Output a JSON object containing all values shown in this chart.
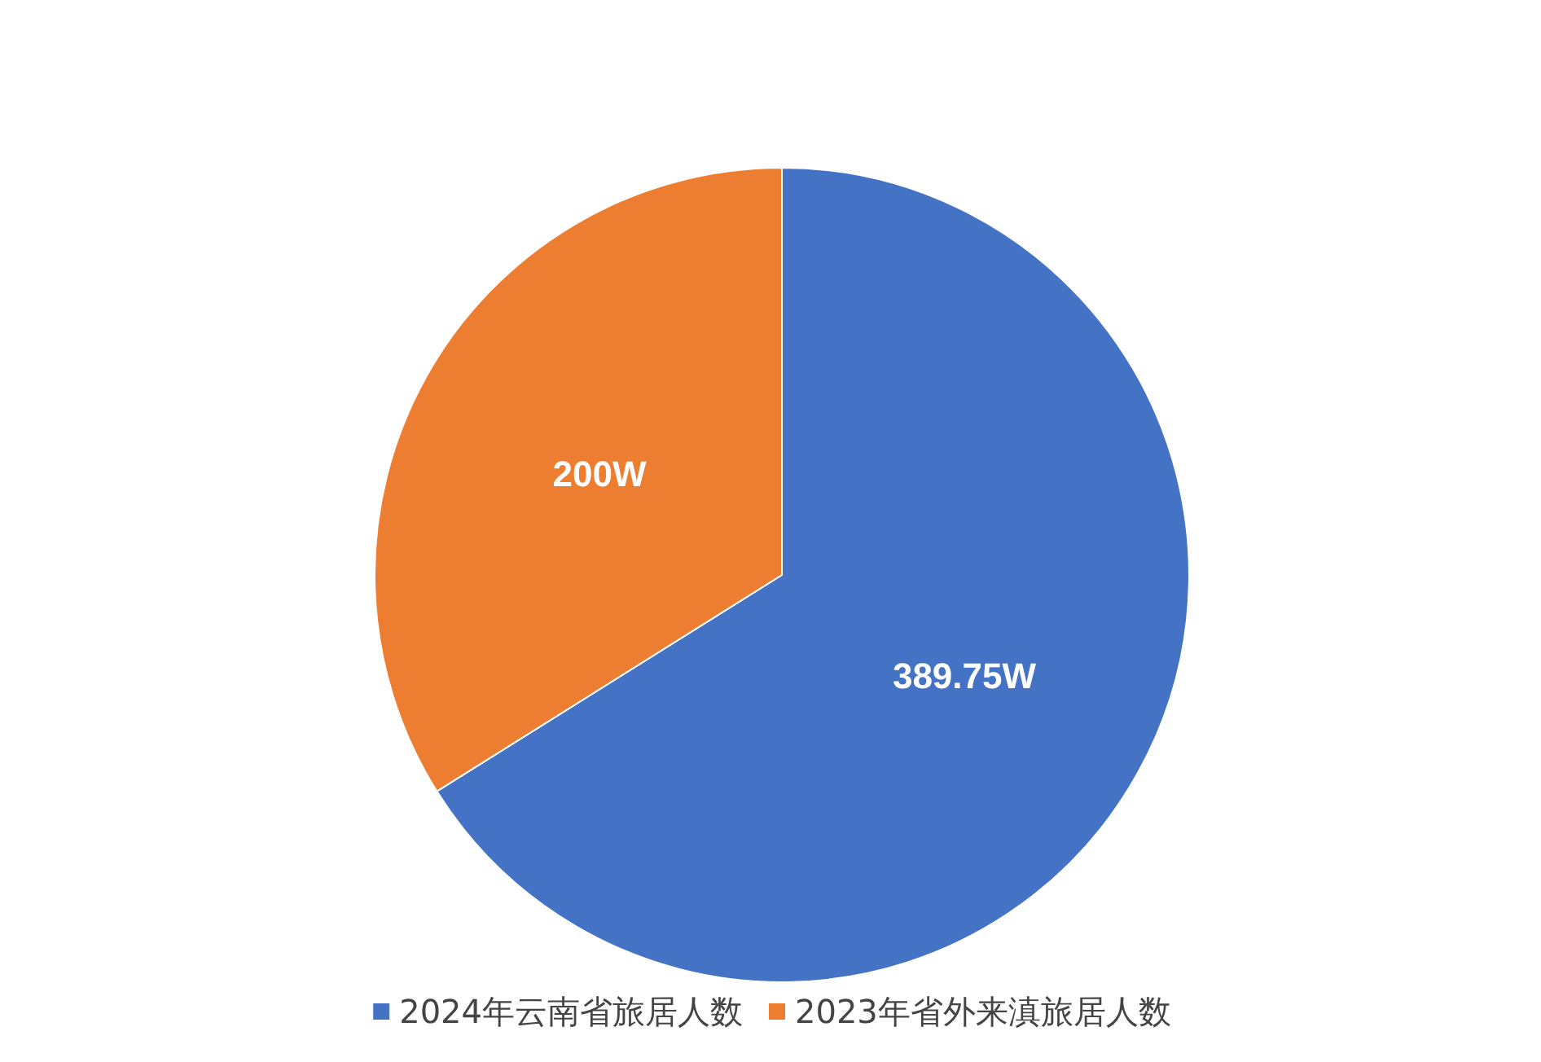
{
  "chart_data": {
    "type": "pie",
    "categories": [
      "2024年云南省旅居人数",
      "2023年省外来滇旅居人数"
    ],
    "values": [
      389.75,
      200
    ],
    "colors": [
      "#4472c4",
      "#ed7d31"
    ],
    "value_labels": [
      "389.75W",
      "200W"
    ],
    "legend": "bottom"
  }
}
